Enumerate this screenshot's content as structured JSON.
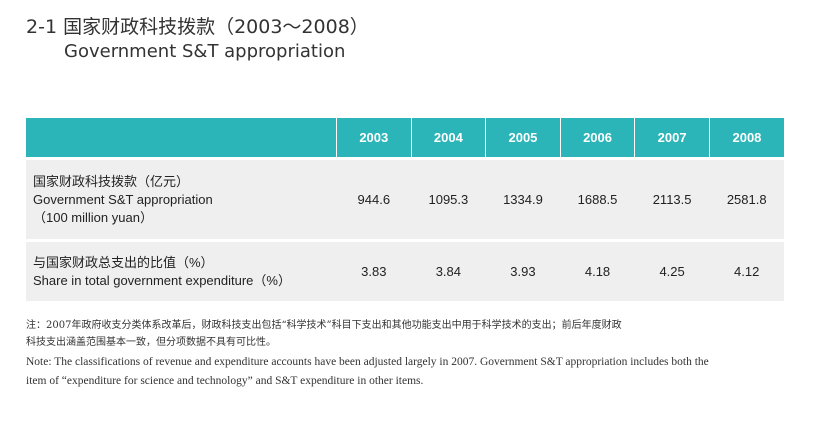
{
  "title": {
    "cn": "2-1 国家财政科技拨款（2003～2008）",
    "en": "Government S&T appropriation"
  },
  "table": {
    "years": [
      "2003",
      "2004",
      "2005",
      "2006",
      "2007",
      "2008"
    ],
    "rows": [
      {
        "label_lines": [
          "国家财政科技拨款（亿元）",
          "Government S&T appropriation",
          "（100 million yuan）"
        ],
        "values": [
          "944.6",
          "1095.3",
          "1334.9",
          "1688.5",
          "2113.5",
          "2581.8"
        ]
      },
      {
        "label_lines": [
          "与国家财政总支出的比值（%）",
          "Share in total government expenditure（%）"
        ],
        "values": [
          "3.83",
          "3.84",
          "3.93",
          "4.18",
          "4.25",
          "4.12"
        ]
      }
    ],
    "header_color": "#2bb5b8",
    "row_color": "#efefef"
  },
  "notes": {
    "cn_line1": "注：2007年政府收支分类体系改革后，财政科技支出包括“科学技术”科目下支出和其他功能支出中用于科学技术的支出；前后年度财政",
    "cn_line2": "科技支出涵盖范围基本一致，但分项数据不具有可比性。",
    "en_line1": "Note: The classifications of revenue and expenditure accounts have been adjusted largely in 2007. Government S&T appropriation includes both the",
    "en_line2": "item of “expenditure for science and technology” and S&T expenditure in other items."
  }
}
